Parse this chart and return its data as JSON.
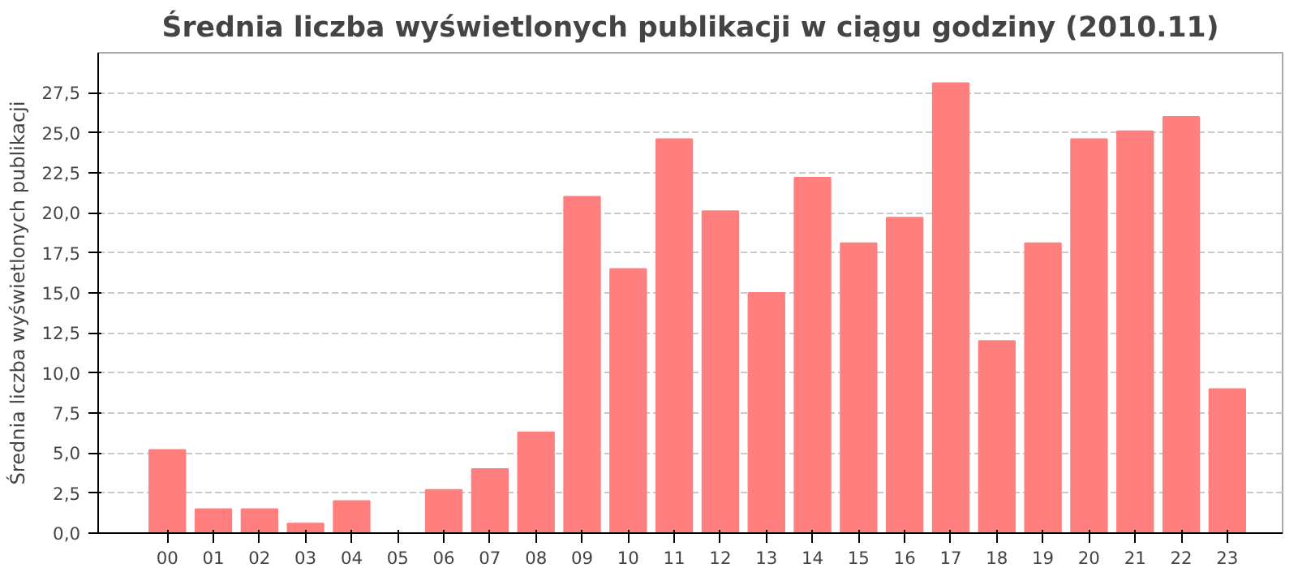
{
  "chart_data": {
    "type": "bar",
    "title": "Średnia liczba wyświetlonych publikacji w ciągu godziny (2010.11)",
    "ylabel": "Średnia liczba wyświetlonych publikacji",
    "categories": [
      "00",
      "01",
      "02",
      "03",
      "04",
      "05",
      "06",
      "07",
      "08",
      "09",
      "10",
      "11",
      "12",
      "13",
      "14",
      "15",
      "16",
      "17",
      "18",
      "19",
      "20",
      "21",
      "22",
      "23"
    ],
    "values": [
      5.2,
      1.5,
      1.5,
      0.6,
      2.0,
      0,
      2.7,
      4.0,
      6.3,
      21.0,
      16.5,
      24.6,
      20.1,
      15.0,
      22.2,
      18.1,
      19.7,
      28.1,
      12.0,
      18.1,
      24.6,
      25.1,
      26.0,
      9.0
    ],
    "color": "#ff7f7f",
    "ylim": [
      0,
      30
    ],
    "yticks": [
      {
        "value": 0,
        "label": "0,0"
      },
      {
        "value": 2.5,
        "label": "2,5"
      },
      {
        "value": 5,
        "label": "5,0"
      },
      {
        "value": 7.5,
        "label": "7,5"
      },
      {
        "value": 10,
        "label": "10,0"
      },
      {
        "value": 12.5,
        "label": "12,5"
      },
      {
        "value": 15,
        "label": "15,0"
      },
      {
        "value": 17.5,
        "label": "17,5"
      },
      {
        "value": 20,
        "label": "20,0"
      },
      {
        "value": 22.5,
        "label": "22,5"
      },
      {
        "value": 25,
        "label": "25,0"
      },
      {
        "value": 27.5,
        "label": "27,5"
      }
    ],
    "grid": "y"
  }
}
